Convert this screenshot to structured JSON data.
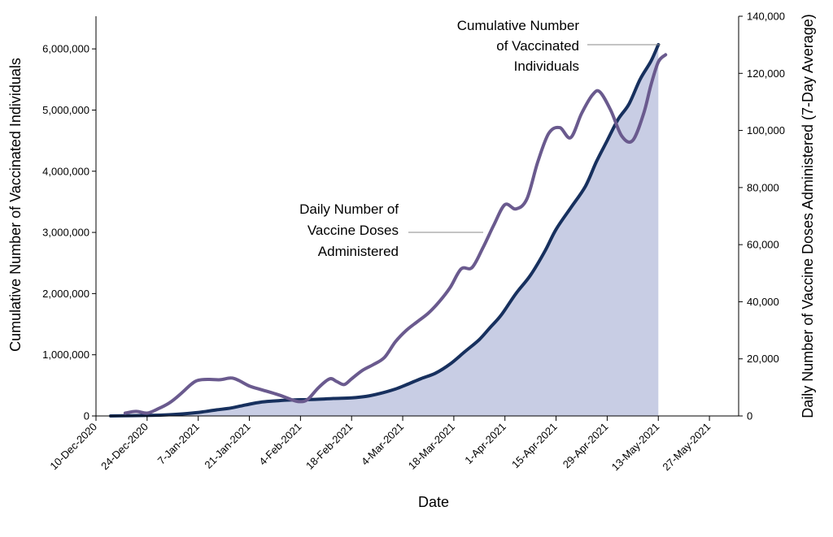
{
  "chart_data": {
    "type": "line",
    "xlabel": "Date",
    "ylabel_left": "Cumulative Number of Vaccinated Individuals",
    "ylabel_right": "Daily Number of Vaccine Doses Administered (7-Day Average)",
    "x_ticks": [
      "10-Dec-2020",
      "24-Dec-2020",
      "7-Jan-2021",
      "21-Jan-2021",
      "4-Feb-2021",
      "18-Feb-2021",
      "4-Mar-2021",
      "18-Mar-2021",
      "1-Apr-2021",
      "15-Apr-2021",
      "29-Apr-2021",
      "13-May-2021",
      "27-May-2021"
    ],
    "x_range": [
      "2020-12-10",
      "2021-06-04"
    ],
    "y_left_ticks": [
      "0",
      "1,000,000",
      "2,000,000",
      "3,000,000",
      "4,000,000",
      "5,000,000",
      "6,000,000"
    ],
    "y_left_range": [
      0,
      6533333
    ],
    "y_right_ticks": [
      "0",
      "20,000",
      "40,000",
      "60,000",
      "80,000",
      "100,000",
      "120,000",
      "140,000"
    ],
    "y_right_range": [
      0,
      140000
    ],
    "grid": false,
    "annotations": {
      "cumulative_lines": [
        "Cumulative Number",
        "of Vaccinated",
        "Individuals"
      ],
      "daily_lines": [
        "Daily Number of",
        "Vaccine Doses",
        "Administered"
      ]
    },
    "series": [
      {
        "axis": "left",
        "style": "filled-area-line",
        "color": "#17305e",
        "fill": "#c8cde4",
        "points": [
          [
            "2020-12-14",
            0
          ],
          [
            "2020-12-20",
            5000
          ],
          [
            "2020-12-25",
            10000
          ],
          [
            "2020-12-30",
            20000
          ],
          [
            "2021-01-04",
            40000
          ],
          [
            "2021-01-08",
            65000
          ],
          [
            "2021-01-12",
            100000
          ],
          [
            "2021-01-16",
            130000
          ],
          [
            "2021-01-20",
            180000
          ],
          [
            "2021-01-24",
            225000
          ],
          [
            "2021-01-28",
            245000
          ],
          [
            "2021-02-01",
            260000
          ],
          [
            "2021-02-07",
            270000
          ],
          [
            "2021-02-13",
            285000
          ],
          [
            "2021-02-18",
            295000
          ],
          [
            "2021-02-22",
            320000
          ],
          [
            "2021-02-26",
            370000
          ],
          [
            "2021-03-02",
            440000
          ],
          [
            "2021-03-05",
            510000
          ],
          [
            "2021-03-09",
            610000
          ],
          [
            "2021-03-13",
            700000
          ],
          [
            "2021-03-17",
            850000
          ],
          [
            "2021-03-21",
            1050000
          ],
          [
            "2021-03-25",
            1250000
          ],
          [
            "2021-03-28",
            1450000
          ],
          [
            "2021-03-31",
            1650000
          ],
          [
            "2021-04-04",
            2000000
          ],
          [
            "2021-04-08",
            2300000
          ],
          [
            "2021-04-12",
            2700000
          ],
          [
            "2021-04-15",
            3050000
          ],
          [
            "2021-04-19",
            3400000
          ],
          [
            "2021-04-23",
            3750000
          ],
          [
            "2021-04-26",
            4150000
          ],
          [
            "2021-04-29",
            4500000
          ],
          [
            "2021-05-02",
            4850000
          ],
          [
            "2021-05-05",
            5100000
          ],
          [
            "2021-05-08",
            5500000
          ],
          [
            "2021-05-11",
            5800000
          ],
          [
            "2021-05-13",
            6070000
          ]
        ]
      },
      {
        "axis": "right",
        "style": "line",
        "color": "#6a5a8e",
        "points": [
          [
            "2020-12-18",
            1000
          ],
          [
            "2020-12-21",
            1600
          ],
          [
            "2020-12-24",
            1000
          ],
          [
            "2020-12-27",
            2500
          ],
          [
            "2020-12-30",
            4500
          ],
          [
            "2021-01-02",
            7500
          ],
          [
            "2021-01-05",
            11000
          ],
          [
            "2021-01-07",
            12500
          ],
          [
            "2021-01-10",
            12800
          ],
          [
            "2021-01-13",
            12700
          ],
          [
            "2021-01-16",
            13300
          ],
          [
            "2021-01-18",
            12500
          ],
          [
            "2021-01-21",
            10500
          ],
          [
            "2021-01-24",
            9300
          ],
          [
            "2021-01-28",
            7800
          ],
          [
            "2021-01-31",
            6500
          ],
          [
            "2021-02-02",
            5500
          ],
          [
            "2021-02-04",
            5000
          ],
          [
            "2021-02-06",
            5800
          ],
          [
            "2021-02-09",
            10000
          ],
          [
            "2021-02-12",
            13000
          ],
          [
            "2021-02-14",
            12000
          ],
          [
            "2021-02-16",
            11000
          ],
          [
            "2021-02-18",
            13000
          ],
          [
            "2021-02-21",
            16000
          ],
          [
            "2021-02-24",
            18000
          ],
          [
            "2021-02-27",
            20500
          ],
          [
            "2021-03-02",
            26000
          ],
          [
            "2021-03-05",
            30000
          ],
          [
            "2021-03-08",
            33000
          ],
          [
            "2021-03-11",
            36000
          ],
          [
            "2021-03-14",
            40000
          ],
          [
            "2021-03-17",
            45000
          ],
          [
            "2021-03-20",
            51500
          ],
          [
            "2021-03-23",
            52000
          ],
          [
            "2021-03-26",
            59000
          ],
          [
            "2021-03-29",
            67000
          ],
          [
            "2021-04-01",
            74000
          ],
          [
            "2021-04-04",
            72500
          ],
          [
            "2021-04-07",
            76000
          ],
          [
            "2021-04-10",
            89000
          ],
          [
            "2021-04-13",
            99000
          ],
          [
            "2021-04-16",
            101000
          ],
          [
            "2021-04-19",
            97500
          ],
          [
            "2021-04-22",
            106000
          ],
          [
            "2021-04-25",
            112500
          ],
          [
            "2021-04-27",
            113500
          ],
          [
            "2021-04-30",
            107000
          ],
          [
            "2021-05-03",
            98000
          ],
          [
            "2021-05-06",
            96500
          ],
          [
            "2021-05-09",
            106000
          ],
          [
            "2021-05-11",
            116000
          ],
          [
            "2021-05-13",
            124000
          ],
          [
            "2021-05-15",
            126500
          ]
        ]
      }
    ]
  }
}
